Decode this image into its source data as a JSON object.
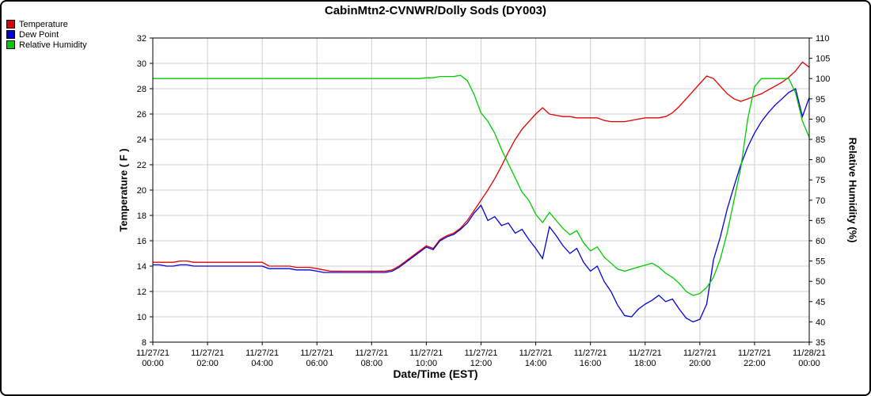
{
  "page": {
    "title": "CabinMtn2-CVNWR/Dolly Sods (DY003)"
  },
  "legend": [
    {
      "label": "Temperature",
      "color": "#e00000"
    },
    {
      "label": "Dew Point",
      "color": "#0000dd"
    },
    {
      "label": "Relative Humidity",
      "color": "#00cc00"
    }
  ],
  "chart_data": {
    "type": "line",
    "title": "CabinMtn2-CVNWR/Dolly Sods (DY003)",
    "xlabel": "Date/Time (EST)",
    "ylabel_left": "Temperature ( F )",
    "ylabel_right": "Relative Humidity (%)",
    "ylim_left": [
      8,
      32
    ],
    "ytick_step_left": 2,
    "ylim_right": [
      35,
      110
    ],
    "ytick_step_right": 5,
    "xlim_hours": [
      0,
      24
    ],
    "grid": true,
    "legend_position": "top-left",
    "x_start": 0,
    "x_step_hours": 0.25,
    "x_ticks": [
      {
        "hour": 0,
        "date": "11/27/21",
        "time": "00:00"
      },
      {
        "hour": 2,
        "date": "11/27/21",
        "time": "02:00"
      },
      {
        "hour": 4,
        "date": "11/27/21",
        "time": "04:00"
      },
      {
        "hour": 6,
        "date": "11/27/21",
        "time": "06:00"
      },
      {
        "hour": 8,
        "date": "11/27/21",
        "time": "08:00"
      },
      {
        "hour": 10,
        "date": "11/27/21",
        "time": "10:00"
      },
      {
        "hour": 12,
        "date": "11/27/21",
        "time": "12:00"
      },
      {
        "hour": 14,
        "date": "11/27/21",
        "time": "14:00"
      },
      {
        "hour": 16,
        "date": "11/27/21",
        "time": "16:00"
      },
      {
        "hour": 18,
        "date": "11/27/21",
        "time": "18:00"
      },
      {
        "hour": 20,
        "date": "11/27/21",
        "time": "20:00"
      },
      {
        "hour": 22,
        "date": "11/27/21",
        "time": "22:00"
      },
      {
        "hour": 24,
        "date": "11/28/21",
        "time": "00:00"
      }
    ],
    "series": [
      {
        "name": "Temperature",
        "axis": "left",
        "color": "#e00000",
        "values": [
          14.3,
          14.3,
          14.3,
          14.3,
          14.4,
          14.4,
          14.3,
          14.3,
          14.3,
          14.3,
          14.3,
          14.3,
          14.3,
          14.3,
          14.3,
          14.3,
          14.3,
          14.0,
          14.0,
          14.0,
          14.0,
          13.9,
          13.9,
          13.9,
          13.8,
          13.7,
          13.6,
          13.6,
          13.6,
          13.6,
          13.6,
          13.6,
          13.6,
          13.6,
          13.6,
          13.7,
          14.0,
          14.4,
          14.8,
          15.2,
          15.6,
          15.4,
          16.1,
          16.4,
          16.6,
          17.0,
          17.6,
          18.4,
          19.2,
          20.0,
          20.9,
          21.9,
          23.0,
          24.0,
          24.8,
          25.4,
          26.0,
          26.5,
          26.0,
          25.9,
          25.8,
          25.8,
          25.7,
          25.7,
          25.7,
          25.7,
          25.5,
          25.4,
          25.4,
          25.4,
          25.5,
          25.6,
          25.7,
          25.7,
          25.7,
          25.8,
          26.1,
          26.6,
          27.2,
          27.8,
          28.4,
          29.0,
          28.8,
          28.2,
          27.6,
          27.2,
          27.0,
          27.2,
          27.4,
          27.6,
          27.9,
          28.2,
          28.5,
          28.9,
          29.4,
          30.1,
          29.7
        ]
      },
      {
        "name": "Dew Point",
        "axis": "left",
        "color": "#0000dd",
        "values": [
          14.1,
          14.1,
          14.0,
          14.0,
          14.1,
          14.1,
          14.0,
          14.0,
          14.0,
          14.0,
          14.0,
          14.0,
          14.0,
          14.0,
          14.0,
          14.0,
          14.0,
          13.8,
          13.8,
          13.8,
          13.8,
          13.7,
          13.7,
          13.7,
          13.6,
          13.5,
          13.5,
          13.5,
          13.5,
          13.5,
          13.5,
          13.5,
          13.5,
          13.5,
          13.5,
          13.6,
          13.9,
          14.3,
          14.7,
          15.1,
          15.5,
          15.3,
          16.0,
          16.3,
          16.5,
          16.9,
          17.4,
          18.2,
          18.8,
          17.6,
          17.9,
          17.2,
          17.4,
          16.6,
          16.9,
          16.1,
          15.4,
          14.6,
          17.1,
          16.4,
          15.6,
          15.0,
          15.4,
          14.3,
          13.6,
          14.0,
          12.8,
          12.0,
          10.9,
          10.1,
          10.0,
          10.6,
          11.0,
          11.3,
          11.7,
          11.2,
          11.4,
          10.6,
          9.9,
          9.6,
          9.8,
          11.0,
          14.5,
          16.3,
          18.5,
          20.3,
          22.0,
          23.4,
          24.5,
          25.4,
          26.1,
          26.7,
          27.2,
          27.7,
          28.0,
          25.8,
          27.3
        ]
      },
      {
        "name": "Relative Humidity",
        "axis": "right",
        "color": "#00cc00",
        "values": [
          100,
          100,
          100,
          100,
          100,
          100,
          100,
          100,
          100,
          100,
          100,
          100,
          100,
          100,
          100,
          100,
          100,
          100,
          100,
          100,
          100,
          100,
          100,
          100,
          100,
          100,
          100,
          100,
          100,
          100,
          100,
          100,
          100,
          100,
          100,
          100,
          100,
          100,
          100,
          100,
          100.2,
          100.2,
          100.5,
          100.5,
          100.5,
          100.8,
          99.5,
          96.0,
          91.5,
          89.5,
          86.5,
          82.5,
          79.0,
          75.5,
          72.0,
          70.0,
          66.5,
          64.5,
          67.0,
          65.0,
          63.0,
          61.5,
          62.5,
          59.5,
          57.5,
          58.5,
          56.0,
          54.5,
          53.0,
          52.5,
          53.0,
          53.5,
          54.0,
          54.5,
          53.5,
          52.0,
          51.0,
          49.5,
          47.5,
          46.5,
          47.0,
          48.5,
          51.0,
          55.5,
          62.0,
          70.0,
          78.0,
          90.0,
          98.0,
          100,
          100,
          100,
          100,
          100,
          96.5,
          89.5,
          85.5
        ]
      }
    ]
  }
}
